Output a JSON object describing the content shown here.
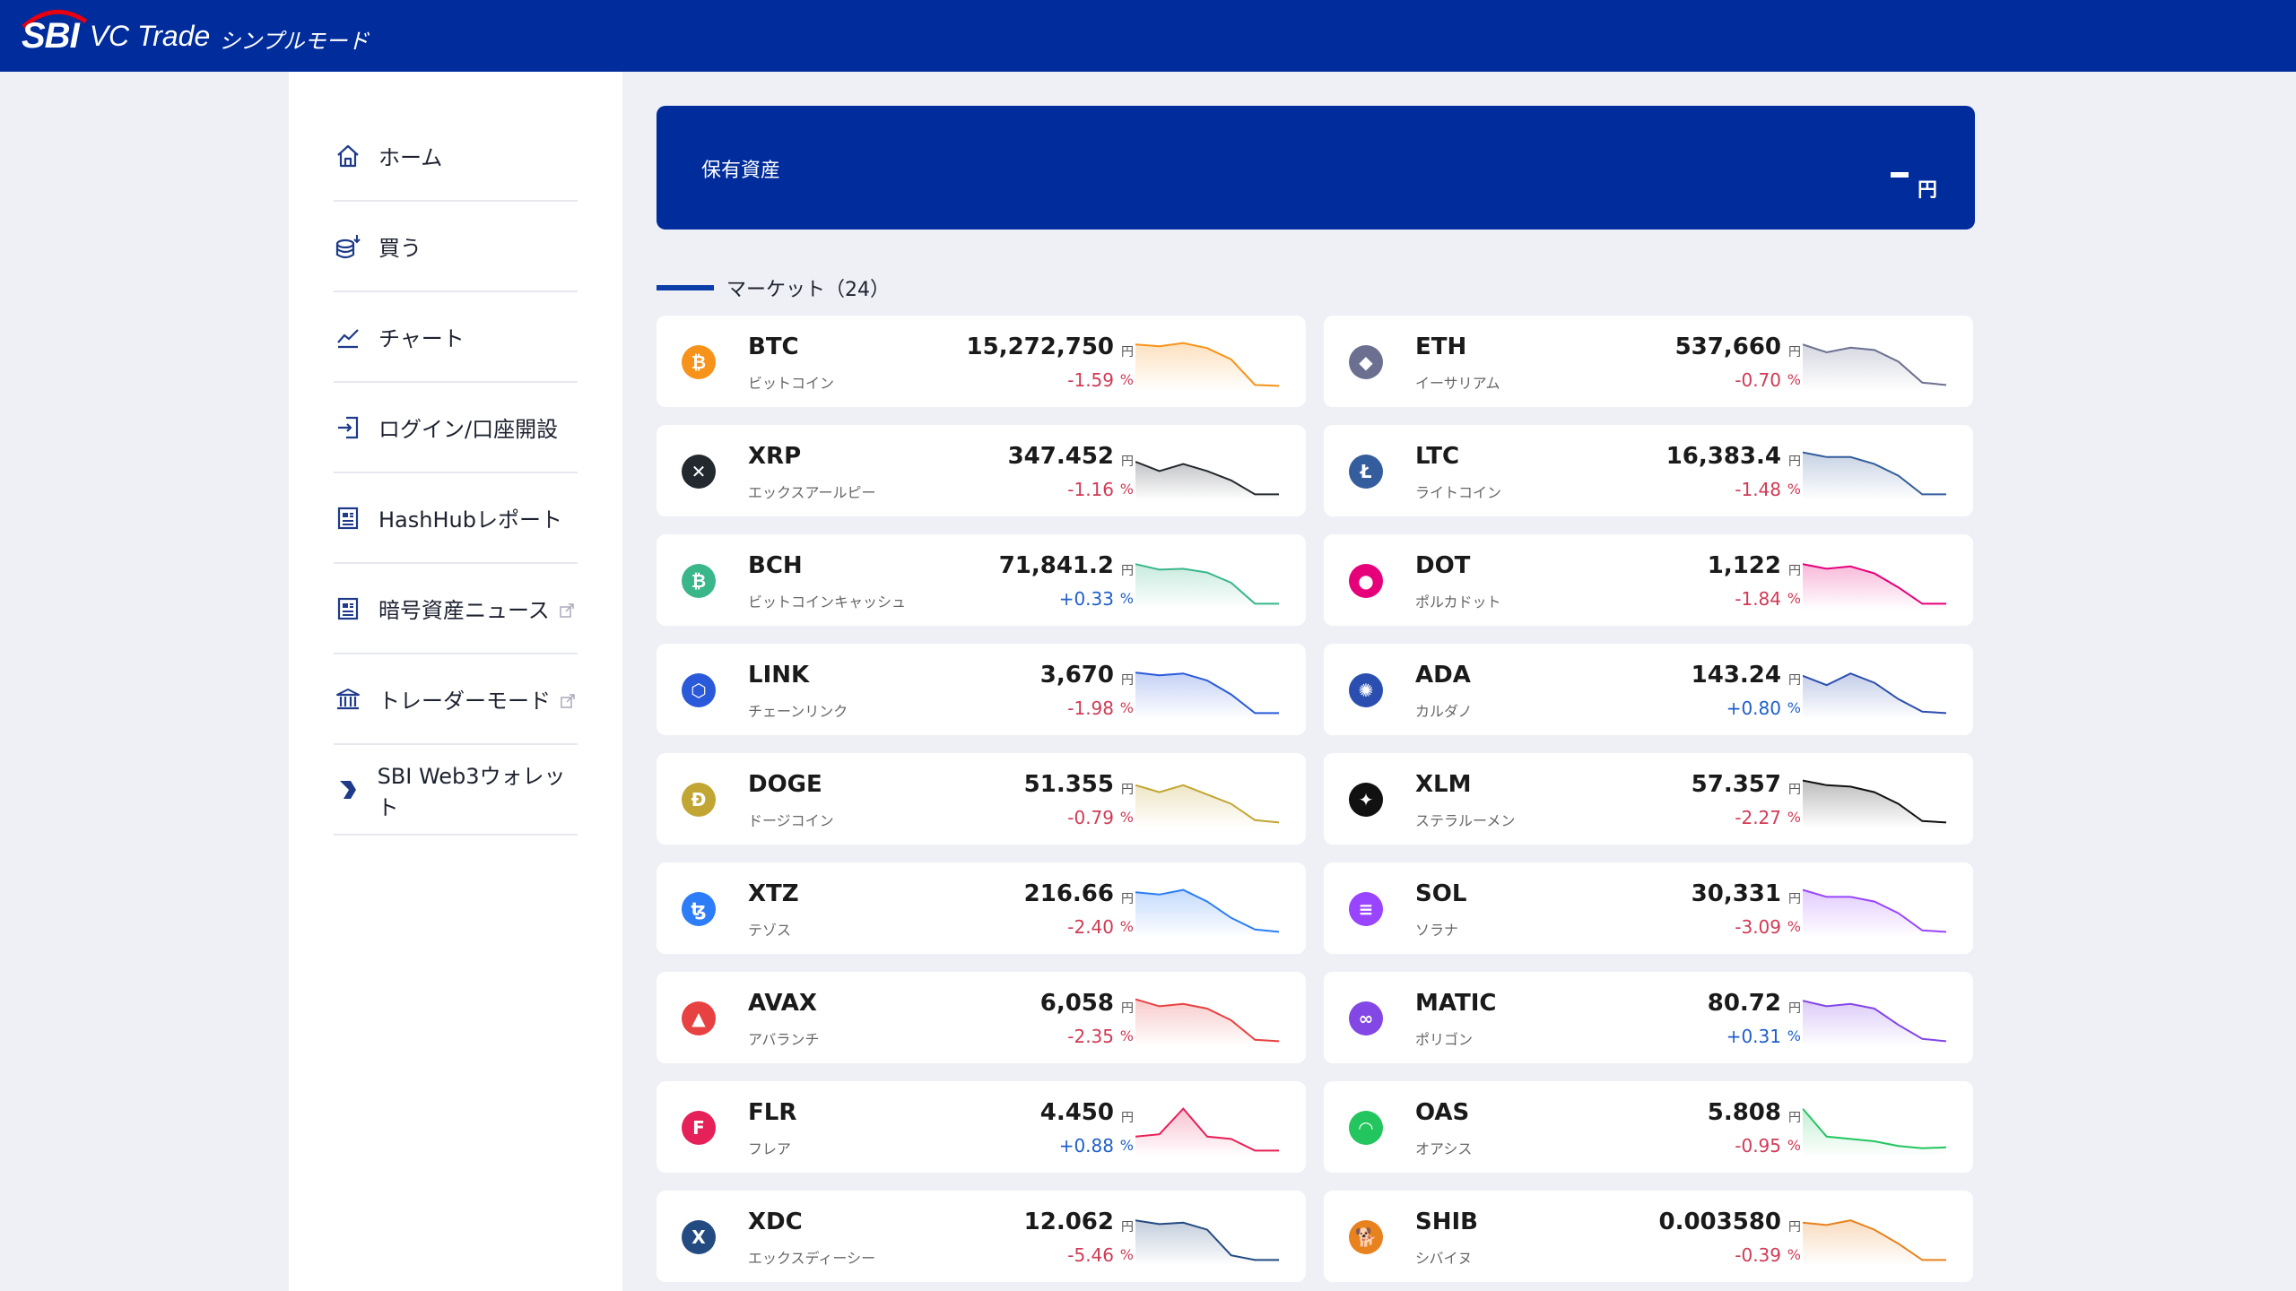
{
  "header": {
    "logo_sbi": "SBI",
    "logo_brand": "VC Trade",
    "logo_mode": "シンプルモード"
  },
  "sidebar": {
    "items": [
      {
        "label": "ホーム",
        "icon": "home-icon",
        "external": false
      },
      {
        "label": "買う",
        "icon": "coins-buy-icon",
        "external": false
      },
      {
        "label": "チャート",
        "icon": "chart-line-icon",
        "external": false
      },
      {
        "label": "ログイン/口座開設",
        "icon": "login-icon",
        "external": false
      },
      {
        "label": "HashHubレポート",
        "icon": "report-icon",
        "external": false
      },
      {
        "label": "暗号資産ニュース",
        "icon": "news-icon",
        "external": true
      },
      {
        "label": "トレーダーモード",
        "icon": "bank-icon",
        "external": true
      },
      {
        "label": "SBI Web3ウォレット",
        "icon": "wallet-icon",
        "external": false
      }
    ]
  },
  "assets": {
    "label": "保有資産",
    "unit": "円"
  },
  "market": {
    "title": "マーケット（24）",
    "yen": "円",
    "pct": "%",
    "coins": [
      {
        "symbol": "BTC",
        "name": "ビットコイン",
        "price": "15,272,750",
        "change": "-1.59",
        "up": false,
        "color": "#f7931a",
        "glyph": "₿",
        "spark": [
          0.92,
          0.88,
          0.95,
          0.84,
          0.6,
          0.05,
          0.03
        ]
      },
      {
        "symbol": "ETH",
        "name": "イーサリアム",
        "price": "537,660",
        "change": "-0.70",
        "up": false,
        "color": "#6b7090",
        "glyph": "◆",
        "spark": [
          0.92,
          0.75,
          0.85,
          0.8,
          0.55,
          0.1,
          0.05
        ]
      },
      {
        "symbol": "XRP",
        "name": "エックスアールピー",
        "price": "347.452",
        "change": "-1.16",
        "up": false,
        "color": "#23292f",
        "glyph": "✕",
        "spark": [
          0.75,
          0.55,
          0.7,
          0.55,
          0.35,
          0.05,
          0.05
        ]
      },
      {
        "symbol": "LTC",
        "name": "ライトコイン",
        "price": "16,383.4",
        "change": "-1.48",
        "up": false,
        "color": "#345d9d",
        "glyph": "Ł",
        "spark": [
          0.95,
          0.85,
          0.85,
          0.7,
          0.45,
          0.05,
          0.05
        ]
      },
      {
        "symbol": "BCH",
        "name": "ビットコインキャッシュ",
        "price": "71,841.2",
        "change": "+0.33",
        "up": true,
        "color": "#3ab78a",
        "glyph": "₿",
        "spark": [
          0.9,
          0.78,
          0.8,
          0.72,
          0.5,
          0.05,
          0.05
        ]
      },
      {
        "symbol": "DOT",
        "name": "ポルカドット",
        "price": "1,122",
        "change": "-1.84",
        "up": false,
        "color": "#e6007a",
        "glyph": "●",
        "spark": [
          0.9,
          0.8,
          0.85,
          0.7,
          0.4,
          0.05,
          0.05
        ]
      },
      {
        "symbol": "LINK",
        "name": "チェーンリンク",
        "price": "3,670",
        "change": "-1.98",
        "up": false,
        "color": "#2a5ada",
        "glyph": "⬡",
        "spark": [
          0.92,
          0.86,
          0.9,
          0.75,
          0.45,
          0.05,
          0.05
        ]
      },
      {
        "symbol": "ADA",
        "name": "カルダノ",
        "price": "143.24",
        "change": "+0.80",
        "up": true,
        "color": "#2b4fb0",
        "glyph": "✺",
        "spark": [
          0.85,
          0.65,
          0.9,
          0.7,
          0.35,
          0.08,
          0.05
        ]
      },
      {
        "symbol": "DOGE",
        "name": "ドージコイン",
        "price": "51.355",
        "change": "-0.79",
        "up": false,
        "color": "#c2a633",
        "glyph": "Ð",
        "spark": [
          0.85,
          0.7,
          0.85,
          0.65,
          0.45,
          0.1,
          0.05
        ]
      },
      {
        "symbol": "XLM",
        "name": "ステラルーメン",
        "price": "57.357",
        "change": "-2.27",
        "up": false,
        "color": "#111111",
        "glyph": "✦",
        "spark": [
          0.95,
          0.85,
          0.82,
          0.7,
          0.45,
          0.08,
          0.05
        ]
      },
      {
        "symbol": "XTZ",
        "name": "テゾス",
        "price": "216.66",
        "change": "-2.40",
        "up": false,
        "color": "#2c7df7",
        "glyph": "ꜩ",
        "spark": [
          0.9,
          0.85,
          0.95,
          0.7,
          0.35,
          0.1,
          0.05
        ]
      },
      {
        "symbol": "SOL",
        "name": "ソラナ",
        "price": "30,331",
        "change": "-3.09",
        "up": false,
        "color": "#9945ff",
        "glyph": "≡",
        "spark": [
          0.95,
          0.8,
          0.8,
          0.7,
          0.45,
          0.08,
          0.05
        ]
      },
      {
        "symbol": "AVAX",
        "name": "アバランチ",
        "price": "6,058",
        "change": "-2.35",
        "up": false,
        "color": "#e84142",
        "glyph": "▲",
        "spark": [
          0.95,
          0.8,
          0.85,
          0.75,
          0.5,
          0.08,
          0.05
        ]
      },
      {
        "symbol": "MATIC",
        "name": "ポリゴン",
        "price": "80.72",
        "change": "+0.31",
        "up": true,
        "color": "#8247e5",
        "glyph": "∞",
        "spark": [
          0.92,
          0.8,
          0.85,
          0.75,
          0.4,
          0.1,
          0.05
        ]
      },
      {
        "symbol": "FLR",
        "name": "フレア",
        "price": "4.450",
        "change": "+0.88",
        "up": true,
        "color": "#e62058",
        "glyph": "F",
        "spark": [
          0.35,
          0.4,
          0.95,
          0.35,
          0.3,
          0.05,
          0.05
        ]
      },
      {
        "symbol": "OAS",
        "name": "オアシス",
        "price": "5.808",
        "change": "-0.95",
        "up": false,
        "color": "#23c55e",
        "glyph": "◠",
        "spark": [
          0.95,
          0.35,
          0.3,
          0.25,
          0.15,
          0.1,
          0.12
        ]
      },
      {
        "symbol": "XDC",
        "name": "エックスディーシー",
        "price": "12.062",
        "change": "-5.46",
        "up": false,
        "color": "#244b81",
        "glyph": "X",
        "spark": [
          0.9,
          0.82,
          0.85,
          0.7,
          0.15,
          0.05,
          0.05
        ]
      },
      {
        "symbol": "SHIB",
        "name": "シバイヌ",
        "price": "0.003580",
        "change": "-0.39",
        "up": false,
        "color": "#e8821e",
        "glyph": "🐕",
        "spark": [
          0.85,
          0.8,
          0.9,
          0.7,
          0.4,
          0.05,
          0.05
        ]
      }
    ]
  }
}
